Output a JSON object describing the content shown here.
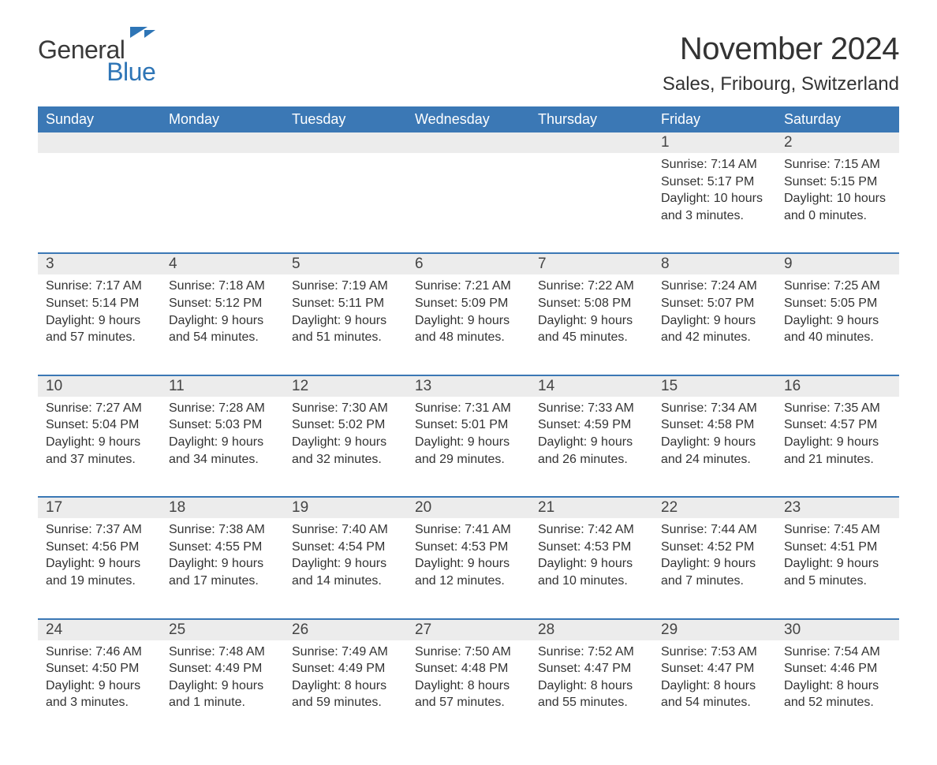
{
  "brand": {
    "word1": "General",
    "word2": "Blue",
    "color_primary": "#2e75b6",
    "color_text": "#3a3a3a"
  },
  "title": "November 2024",
  "location": "Sales, Fribourg, Switzerland",
  "colors": {
    "header_bg": "#3b78b5",
    "header_text": "#ffffff",
    "row_stripe": "#ececec",
    "week_border": "#3b78b5",
    "body_text": "#333333",
    "background": "#ffffff"
  },
  "layout": {
    "columns": 7,
    "weeks": 5,
    "first_day_column_index": 5
  },
  "days_of_week": [
    "Sunday",
    "Monday",
    "Tuesday",
    "Wednesday",
    "Thursday",
    "Friday",
    "Saturday"
  ],
  "labels": {
    "sunrise": "Sunrise: ",
    "sunset": "Sunset: ",
    "daylight": "Daylight: "
  },
  "days": [
    {
      "n": 1,
      "sunrise": "7:14 AM",
      "sunset": "5:17 PM",
      "daylight": "10 hours and 3 minutes."
    },
    {
      "n": 2,
      "sunrise": "7:15 AM",
      "sunset": "5:15 PM",
      "daylight": "10 hours and 0 minutes."
    },
    {
      "n": 3,
      "sunrise": "7:17 AM",
      "sunset": "5:14 PM",
      "daylight": "9 hours and 57 minutes."
    },
    {
      "n": 4,
      "sunrise": "7:18 AM",
      "sunset": "5:12 PM",
      "daylight": "9 hours and 54 minutes."
    },
    {
      "n": 5,
      "sunrise": "7:19 AM",
      "sunset": "5:11 PM",
      "daylight": "9 hours and 51 minutes."
    },
    {
      "n": 6,
      "sunrise": "7:21 AM",
      "sunset": "5:09 PM",
      "daylight": "9 hours and 48 minutes."
    },
    {
      "n": 7,
      "sunrise": "7:22 AM",
      "sunset": "5:08 PM",
      "daylight": "9 hours and 45 minutes."
    },
    {
      "n": 8,
      "sunrise": "7:24 AM",
      "sunset": "5:07 PM",
      "daylight": "9 hours and 42 minutes."
    },
    {
      "n": 9,
      "sunrise": "7:25 AM",
      "sunset": "5:05 PM",
      "daylight": "9 hours and 40 minutes."
    },
    {
      "n": 10,
      "sunrise": "7:27 AM",
      "sunset": "5:04 PM",
      "daylight": "9 hours and 37 minutes."
    },
    {
      "n": 11,
      "sunrise": "7:28 AM",
      "sunset": "5:03 PM",
      "daylight": "9 hours and 34 minutes."
    },
    {
      "n": 12,
      "sunrise": "7:30 AM",
      "sunset": "5:02 PM",
      "daylight": "9 hours and 32 minutes."
    },
    {
      "n": 13,
      "sunrise": "7:31 AM",
      "sunset": "5:01 PM",
      "daylight": "9 hours and 29 minutes."
    },
    {
      "n": 14,
      "sunrise": "7:33 AM",
      "sunset": "4:59 PM",
      "daylight": "9 hours and 26 minutes."
    },
    {
      "n": 15,
      "sunrise": "7:34 AM",
      "sunset": "4:58 PM",
      "daylight": "9 hours and 24 minutes."
    },
    {
      "n": 16,
      "sunrise": "7:35 AM",
      "sunset": "4:57 PM",
      "daylight": "9 hours and 21 minutes."
    },
    {
      "n": 17,
      "sunrise": "7:37 AM",
      "sunset": "4:56 PM",
      "daylight": "9 hours and 19 minutes."
    },
    {
      "n": 18,
      "sunrise": "7:38 AM",
      "sunset": "4:55 PM",
      "daylight": "9 hours and 17 minutes."
    },
    {
      "n": 19,
      "sunrise": "7:40 AM",
      "sunset": "4:54 PM",
      "daylight": "9 hours and 14 minutes."
    },
    {
      "n": 20,
      "sunrise": "7:41 AM",
      "sunset": "4:53 PM",
      "daylight": "9 hours and 12 minutes."
    },
    {
      "n": 21,
      "sunrise": "7:42 AM",
      "sunset": "4:53 PM",
      "daylight": "9 hours and 10 minutes."
    },
    {
      "n": 22,
      "sunrise": "7:44 AM",
      "sunset": "4:52 PM",
      "daylight": "9 hours and 7 minutes."
    },
    {
      "n": 23,
      "sunrise": "7:45 AM",
      "sunset": "4:51 PM",
      "daylight": "9 hours and 5 minutes."
    },
    {
      "n": 24,
      "sunrise": "7:46 AM",
      "sunset": "4:50 PM",
      "daylight": "9 hours and 3 minutes."
    },
    {
      "n": 25,
      "sunrise": "7:48 AM",
      "sunset": "4:49 PM",
      "daylight": "9 hours and 1 minute."
    },
    {
      "n": 26,
      "sunrise": "7:49 AM",
      "sunset": "4:49 PM",
      "daylight": "8 hours and 59 minutes."
    },
    {
      "n": 27,
      "sunrise": "7:50 AM",
      "sunset": "4:48 PM",
      "daylight": "8 hours and 57 minutes."
    },
    {
      "n": 28,
      "sunrise": "7:52 AM",
      "sunset": "4:47 PM",
      "daylight": "8 hours and 55 minutes."
    },
    {
      "n": 29,
      "sunrise": "7:53 AM",
      "sunset": "4:47 PM",
      "daylight": "8 hours and 54 minutes."
    },
    {
      "n": 30,
      "sunrise": "7:54 AM",
      "sunset": "4:46 PM",
      "daylight": "8 hours and 52 minutes."
    }
  ]
}
